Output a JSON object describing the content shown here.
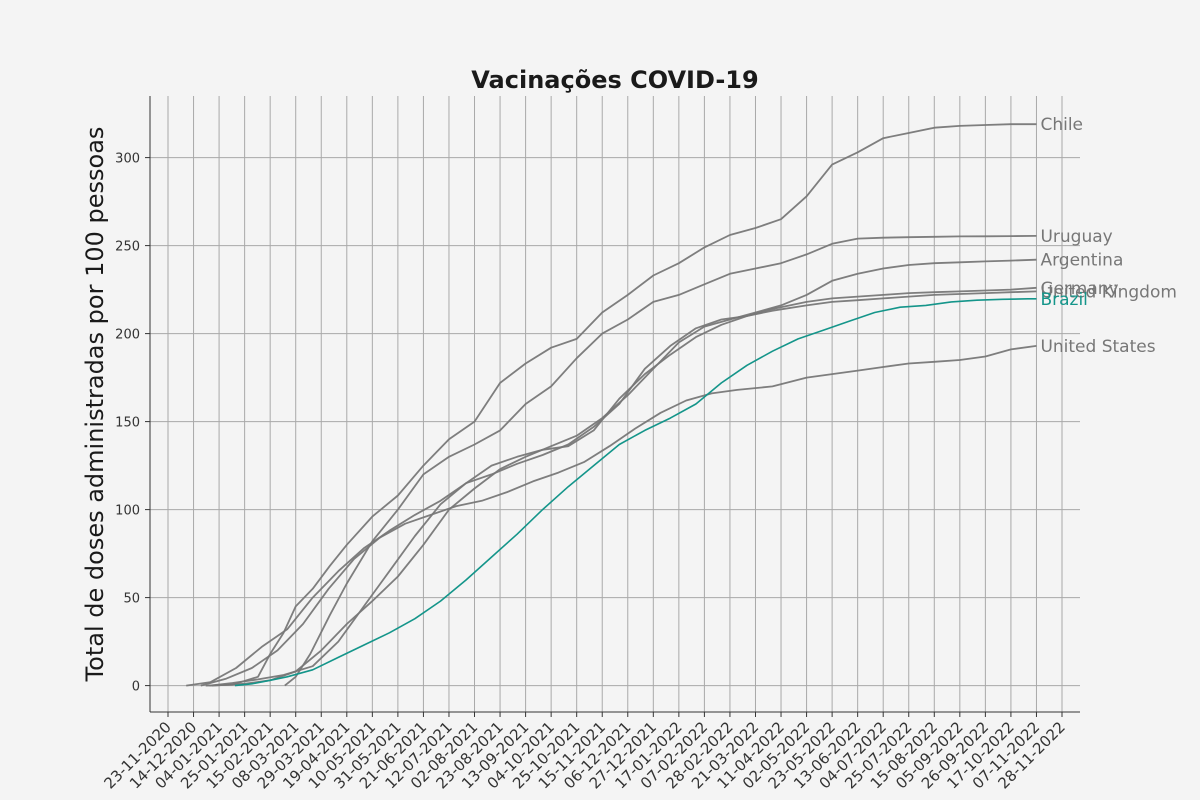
{
  "chart_data": {
    "type": "line",
    "title": "Vacinações COVID-19",
    "xlabel": "",
    "ylabel": "Total de doses administradas por 100 pessoas",
    "x_tick_labels": [
      "23-11-2020",
      "14-12-2020",
      "04-01-2021",
      "25-01-2021",
      "15-02-2021",
      "08-03-2021",
      "29-03-2021",
      "19-04-2021",
      "10-05-2021",
      "31-05-2021",
      "21-06-2021",
      "12-07-2021",
      "02-08-2021",
      "23-08-2021",
      "13-09-2021",
      "04-10-2021",
      "25-10-2021",
      "15-11-2021",
      "06-12-2021",
      "27-12-2021",
      "17-01-2022",
      "07-02-2022",
      "28-02-2022",
      "21-03-2022",
      "11-04-2022",
      "02-05-2022",
      "23-05-2022",
      "13-06-2022",
      "04-07-2022",
      "25-07-2022",
      "15-08-2022",
      "05-09-2022",
      "26-09-2022",
      "17-10-2022",
      "07-11-2022",
      "28-11-2022"
    ],
    "y_ticks": [
      0,
      50,
      100,
      150,
      200,
      250,
      300
    ],
    "ylim": [
      -15,
      335
    ],
    "grid": true,
    "legend": "none (series labeled at line ends)",
    "colors": {
      "highlight": "#14958a",
      "other": "#777777"
    },
    "series": [
      {
        "name": "Chile",
        "highlight": false,
        "points": [
          [
            "2020-12-24",
            0
          ],
          [
            "2021-01-15",
            0.5
          ],
          [
            "2021-02-05",
            5
          ],
          [
            "2021-02-15",
            18
          ],
          [
            "2021-02-26",
            30
          ],
          [
            "2021-03-08",
            45
          ],
          [
            "2021-03-22",
            55
          ],
          [
            "2021-04-05",
            68
          ],
          [
            "2021-04-19",
            80
          ],
          [
            "2021-05-10",
            96
          ],
          [
            "2021-05-31",
            108
          ],
          [
            "2021-06-21",
            125
          ],
          [
            "2021-07-12",
            140
          ],
          [
            "2021-08-02",
            150
          ],
          [
            "2021-08-23",
            172
          ],
          [
            "2021-09-13",
            183
          ],
          [
            "2021-10-04",
            192
          ],
          [
            "2021-10-25",
            197
          ],
          [
            "2021-11-15",
            212
          ],
          [
            "2021-12-06",
            222
          ],
          [
            "2021-12-27",
            233
          ],
          [
            "2022-01-17",
            240
          ],
          [
            "2022-02-07",
            249
          ],
          [
            "2022-02-28",
            256
          ],
          [
            "2022-03-21",
            260
          ],
          [
            "2022-04-11",
            265
          ],
          [
            "2022-05-02",
            278
          ],
          [
            "2022-05-23",
            296
          ],
          [
            "2022-06-13",
            303
          ],
          [
            "2022-07-04",
            311
          ],
          [
            "2022-07-25",
            314
          ],
          [
            "2022-08-15",
            317
          ],
          [
            "2022-09-05",
            318
          ],
          [
            "2022-09-26",
            318.5
          ],
          [
            "2022-10-17",
            319
          ],
          [
            "2022-11-07",
            319
          ]
        ]
      },
      {
        "name": "Uruguay",
        "highlight": false,
        "points": [
          [
            "2021-02-27",
            0
          ],
          [
            "2021-03-08",
            5
          ],
          [
            "2021-03-20",
            18
          ],
          [
            "2021-04-05",
            40
          ],
          [
            "2021-04-19",
            58
          ],
          [
            "2021-05-10",
            82
          ],
          [
            "2021-05-31",
            100
          ],
          [
            "2021-06-21",
            120
          ],
          [
            "2021-07-12",
            130
          ],
          [
            "2021-08-02",
            137
          ],
          [
            "2021-08-23",
            145
          ],
          [
            "2021-09-13",
            160
          ],
          [
            "2021-10-04",
            170
          ],
          [
            "2021-10-25",
            186
          ],
          [
            "2021-11-15",
            200
          ],
          [
            "2021-12-06",
            208
          ],
          [
            "2021-12-27",
            218
          ],
          [
            "2022-01-17",
            222
          ],
          [
            "2022-02-07",
            228
          ],
          [
            "2022-02-28",
            234
          ],
          [
            "2022-03-21",
            237
          ],
          [
            "2022-04-11",
            240
          ],
          [
            "2022-05-02",
            245
          ],
          [
            "2022-05-23",
            251
          ],
          [
            "2022-06-13",
            254
          ],
          [
            "2022-07-04",
            254.5
          ],
          [
            "2022-07-25",
            254.8
          ],
          [
            "2022-08-15",
            255
          ],
          [
            "2022-09-05",
            255.2
          ],
          [
            "2022-09-26",
            255.3
          ],
          [
            "2022-10-17",
            255.4
          ],
          [
            "2022-11-07",
            255.5
          ]
        ]
      },
      {
        "name": "Argentina",
        "highlight": false,
        "points": [
          [
            "2020-12-29",
            0
          ],
          [
            "2021-01-25",
            1
          ],
          [
            "2021-02-15",
            3
          ],
          [
            "2021-03-08",
            8
          ],
          [
            "2021-03-29",
            20
          ],
          [
            "2021-04-19",
            35
          ],
          [
            "2021-05-10",
            48
          ],
          [
            "2021-05-31",
            62
          ],
          [
            "2021-06-21",
            80
          ],
          [
            "2021-07-12",
            100
          ],
          [
            "2021-08-02",
            112
          ],
          [
            "2021-08-23",
            123
          ],
          [
            "2021-09-13",
            130
          ],
          [
            "2021-10-04",
            136
          ],
          [
            "2021-10-25",
            142
          ],
          [
            "2021-11-15",
            152
          ],
          [
            "2021-12-06",
            165
          ],
          [
            "2021-12-27",
            180
          ],
          [
            "2022-01-17",
            195
          ],
          [
            "2022-02-07",
            204
          ],
          [
            "2022-02-28",
            208
          ],
          [
            "2022-03-21",
            212
          ],
          [
            "2022-04-11",
            216
          ],
          [
            "2022-05-02",
            222
          ],
          [
            "2022-05-23",
            230
          ],
          [
            "2022-06-13",
            234
          ],
          [
            "2022-07-04",
            237
          ],
          [
            "2022-07-25",
            239
          ],
          [
            "2022-08-15",
            240
          ],
          [
            "2022-09-05",
            240.5
          ],
          [
            "2022-09-26",
            241
          ],
          [
            "2022-10-17",
            241.5
          ],
          [
            "2022-11-07",
            242
          ]
        ]
      },
      {
        "name": "Germany",
        "highlight": false,
        "points": [
          [
            "2020-12-27",
            0
          ],
          [
            "2021-01-15",
            1.5
          ],
          [
            "2021-02-05",
            3.5
          ],
          [
            "2021-02-26",
            6
          ],
          [
            "2021-03-22",
            11
          ],
          [
            "2021-04-12",
            25
          ],
          [
            "2021-05-03",
            45
          ],
          [
            "2021-05-24",
            65
          ],
          [
            "2021-06-14",
            85
          ],
          [
            "2021-07-05",
            103
          ],
          [
            "2021-07-26",
            115
          ],
          [
            "2021-08-16",
            125
          ],
          [
            "2021-09-06",
            130
          ],
          [
            "2021-09-27",
            134
          ],
          [
            "2021-10-18",
            136
          ],
          [
            "2021-11-08",
            145
          ],
          [
            "2021-11-29",
            163
          ],
          [
            "2021-12-20",
            177
          ],
          [
            "2022-01-10",
            188
          ],
          [
            "2022-01-31",
            198
          ],
          [
            "2022-02-21",
            205
          ],
          [
            "2022-03-14",
            210
          ],
          [
            "2022-04-04",
            214
          ],
          [
            "2022-05-02",
            218
          ],
          [
            "2022-05-23",
            220
          ],
          [
            "2022-06-13",
            221
          ],
          [
            "2022-07-04",
            222
          ],
          [
            "2022-07-25",
            223
          ],
          [
            "2022-08-15",
            223.5
          ],
          [
            "2022-09-05",
            224
          ],
          [
            "2022-09-26",
            224.5
          ],
          [
            "2022-10-17",
            225
          ],
          [
            "2022-11-07",
            226
          ]
        ]
      },
      {
        "name": "United Kingdom",
        "highlight": false,
        "points": [
          [
            "2020-12-08",
            0
          ],
          [
            "2020-12-28",
            2
          ],
          [
            "2021-01-18",
            10
          ],
          [
            "2021-02-08",
            22
          ],
          [
            "2021-03-01",
            32
          ],
          [
            "2021-03-22",
            50
          ],
          [
            "2021-04-12",
            65
          ],
          [
            "2021-05-03",
            78
          ],
          [
            "2021-05-24",
            88
          ],
          [
            "2021-06-14",
            97
          ],
          [
            "2021-07-05",
            105
          ],
          [
            "2021-07-26",
            115
          ],
          [
            "2021-08-16",
            120
          ],
          [
            "2021-09-06",
            126
          ],
          [
            "2021-09-27",
            131
          ],
          [
            "2021-10-18",
            137
          ],
          [
            "2021-11-08",
            147
          ],
          [
            "2021-11-29",
            160
          ],
          [
            "2021-12-20",
            180
          ],
          [
            "2022-01-10",
            193
          ],
          [
            "2022-01-31",
            203
          ],
          [
            "2022-02-21",
            208
          ],
          [
            "2022-03-14",
            210
          ],
          [
            "2022-04-04",
            213
          ],
          [
            "2022-05-02",
            216
          ],
          [
            "2022-05-23",
            218
          ],
          [
            "2022-06-13",
            219
          ],
          [
            "2022-07-04",
            220
          ],
          [
            "2022-07-25",
            221
          ],
          [
            "2022-08-15",
            222
          ],
          [
            "2022-09-05",
            222.5
          ],
          [
            "2022-09-26",
            223
          ],
          [
            "2022-10-17",
            223.5
          ],
          [
            "2022-11-07",
            224
          ]
        ]
      },
      {
        "name": "Brazil",
        "highlight": true,
        "points": [
          [
            "2021-01-17",
            0
          ],
          [
            "2021-01-31",
            1
          ],
          [
            "2021-02-15",
            3
          ],
          [
            "2021-03-01",
            5
          ],
          [
            "2021-03-22",
            9
          ],
          [
            "2021-04-12",
            16
          ],
          [
            "2021-05-03",
            23
          ],
          [
            "2021-05-24",
            30
          ],
          [
            "2021-06-14",
            38
          ],
          [
            "2021-07-05",
            48
          ],
          [
            "2021-07-26",
            60
          ],
          [
            "2021-08-16",
            73
          ],
          [
            "2021-09-06",
            86
          ],
          [
            "2021-09-27",
            100
          ],
          [
            "2021-10-18",
            113
          ],
          [
            "2021-11-08",
            125
          ],
          [
            "2021-11-29",
            137
          ],
          [
            "2021-12-20",
            145
          ],
          [
            "2022-01-10",
            152
          ],
          [
            "2022-01-31",
            160
          ],
          [
            "2022-02-21",
            172
          ],
          [
            "2022-03-14",
            182
          ],
          [
            "2022-04-04",
            190
          ],
          [
            "2022-04-25",
            197
          ],
          [
            "2022-05-16",
            202
          ],
          [
            "2022-06-06",
            207
          ],
          [
            "2022-06-27",
            212
          ],
          [
            "2022-07-18",
            215
          ],
          [
            "2022-08-08",
            216
          ],
          [
            "2022-08-29",
            218
          ],
          [
            "2022-09-19",
            219
          ],
          [
            "2022-10-10",
            219.5
          ],
          [
            "2022-10-31",
            219.8
          ],
          [
            "2022-11-07",
            219.8
          ]
        ]
      },
      {
        "name": "United States",
        "highlight": false,
        "points": [
          [
            "2020-12-20",
            0
          ],
          [
            "2021-01-10",
            4
          ],
          [
            "2021-01-31",
            10
          ],
          [
            "2021-02-21",
            20
          ],
          [
            "2021-03-14",
            35
          ],
          [
            "2021-04-04",
            55
          ],
          [
            "2021-04-25",
            72
          ],
          [
            "2021-05-16",
            84
          ],
          [
            "2021-06-06",
            92
          ],
          [
            "2021-06-27",
            97
          ],
          [
            "2021-07-18",
            102
          ],
          [
            "2021-08-08",
            105
          ],
          [
            "2021-08-29",
            110
          ],
          [
            "2021-09-19",
            116
          ],
          [
            "2021-10-10",
            121
          ],
          [
            "2021-10-31",
            127
          ],
          [
            "2021-11-21",
            136
          ],
          [
            "2021-12-12",
            146
          ],
          [
            "2022-01-02",
            155
          ],
          [
            "2022-01-23",
            162
          ],
          [
            "2022-02-13",
            166
          ],
          [
            "2022-03-06",
            168
          ],
          [
            "2022-04-04",
            170
          ],
          [
            "2022-05-02",
            175
          ],
          [
            "2022-05-23",
            177
          ],
          [
            "2022-06-13",
            179
          ],
          [
            "2022-07-04",
            181
          ],
          [
            "2022-07-25",
            183
          ],
          [
            "2022-08-15",
            184
          ],
          [
            "2022-09-05",
            185
          ],
          [
            "2022-09-26",
            187
          ],
          [
            "2022-10-17",
            191
          ],
          [
            "2022-11-07",
            193
          ]
        ]
      }
    ]
  }
}
